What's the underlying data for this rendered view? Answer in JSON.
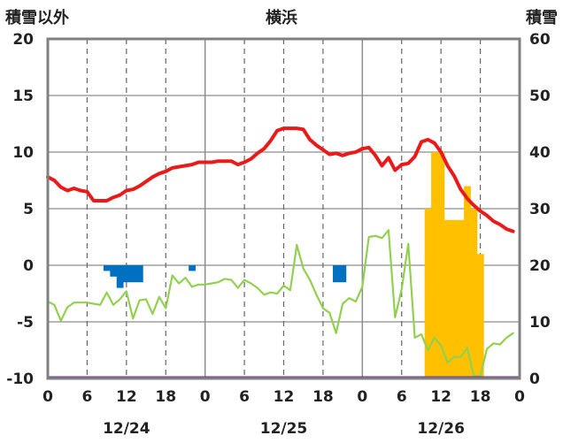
{
  "chart_data": {
    "type": "line+bar",
    "title": "横浜",
    "left_axis_label": "積雪以外",
    "right_axis_label": "積雪",
    "left_ylim": [
      -10,
      20
    ],
    "left_yticks": [
      "20",
      "15",
      "10",
      "5",
      "0",
      "-5",
      "-10"
    ],
    "right_ylim": [
      0,
      60
    ],
    "right_yticks": [
      "60",
      "50",
      "40",
      "30",
      "20",
      "10",
      "0"
    ],
    "xlim_hours": [
      0,
      72
    ],
    "x_tick_labels": [
      "0",
      "6",
      "12",
      "18",
      "0",
      "6",
      "12",
      "18",
      "0",
      "6",
      "12",
      "18",
      "0"
    ],
    "date_labels": [
      "12/24",
      "12/25",
      "12/26"
    ],
    "grid": true,
    "colors": {
      "temperature": "#e81a1a",
      "dewpoint": "#92d050",
      "precip": "#0070c0",
      "snow": "#ffc000",
      "baseline": "#7030a0",
      "frame": "#808080"
    },
    "series": [
      {
        "key": "temperature",
        "unit_axis": "left",
        "x": [
          0,
          1,
          2,
          3,
          4,
          5,
          6,
          7,
          8,
          9,
          10,
          11,
          12,
          13,
          14,
          15,
          16,
          17,
          18,
          19,
          20,
          21,
          22,
          23,
          24,
          25,
          26,
          27,
          28,
          29,
          30,
          31,
          32,
          33,
          34,
          35,
          36,
          37,
          38,
          39,
          40,
          41,
          42,
          43,
          44,
          45,
          46,
          47,
          48,
          49,
          50,
          51,
          52,
          53,
          54,
          55,
          56,
          57,
          58,
          59,
          60,
          61,
          62,
          63,
          64,
          65,
          66,
          67,
          68,
          69,
          70,
          71
        ],
        "y": [
          7.8,
          7.5,
          6.9,
          6.6,
          6.8,
          6.6,
          6.5,
          5.7,
          5.7,
          5.7,
          6.0,
          6.2,
          6.6,
          6.7,
          7.0,
          7.4,
          7.8,
          8.1,
          8.3,
          8.6,
          8.7,
          8.8,
          8.9,
          9.1,
          9.1,
          9.1,
          9.2,
          9.2,
          9.2,
          8.9,
          9.1,
          9.4,
          9.9,
          10.3,
          11.0,
          11.9,
          12.1,
          12.1,
          12.1,
          12.0,
          11.1,
          10.6,
          10.2,
          9.8,
          9.9,
          9.7,
          9.9,
          10.0,
          10.3,
          10.4,
          9.7,
          8.8,
          9.5,
          8.4,
          8.9,
          9.0,
          9.6,
          10.9,
          11.1,
          10.8,
          10.0,
          8.8,
          7.9,
          6.7,
          5.9,
          5.3,
          4.8,
          4.4,
          3.9,
          3.6,
          3.2,
          3.0
        ]
      },
      {
        "key": "dewpoint",
        "unit_axis": "left",
        "x": [
          0,
          1,
          2,
          3,
          4,
          5,
          6,
          7,
          8,
          9,
          10,
          11,
          12,
          13,
          14,
          15,
          16,
          17,
          18,
          19,
          20,
          21,
          22,
          23,
          24,
          25,
          26,
          27,
          28,
          29,
          30,
          31,
          32,
          33,
          34,
          35,
          36,
          37,
          38,
          39,
          40,
          41,
          42,
          43,
          44,
          45,
          46,
          47,
          48,
          49,
          50,
          51,
          52,
          53,
          54,
          55,
          56,
          57,
          58,
          59,
          60,
          61,
          62,
          63,
          64,
          65,
          66,
          67,
          68,
          69,
          70,
          71
        ],
        "y": [
          -3.2,
          -3.5,
          -4.9,
          -3.7,
          -3.3,
          -3.3,
          -3.3,
          -3.4,
          -3.5,
          -2.4,
          -3.5,
          -3.0,
          -2.3,
          -4.7,
          -3.1,
          -3.0,
          -4.3,
          -2.8,
          -3.8,
          -0.9,
          -1.6,
          -1.1,
          -1.9,
          -1.7,
          -1.7,
          -1.6,
          -1.5,
          -1.2,
          -1.3,
          -2.0,
          -1.3,
          -1.6,
          -2.0,
          -2.6,
          -2.4,
          -2.5,
          -1.8,
          -2.2,
          1.8,
          -0.3,
          -1.3,
          -2.6,
          -3.8,
          -4.2,
          -6.0,
          -3.4,
          -2.9,
          -3.2,
          -1.9,
          2.5,
          2.6,
          2.4,
          3.1,
          -4.6,
          -2.1,
          1.9,
          -6.4,
          -6.1,
          -7.5,
          -6.4,
          -7.1,
          -8.6,
          -8.1,
          -8.1,
          -7.3,
          -9.8,
          -9.8,
          -7.4,
          -6.9,
          -7.0,
          -6.4,
          -6.0
        ]
      }
    ],
    "bars": [
      {
        "key": "precip",
        "unit_axis": "left",
        "x": [
          9,
          10,
          11,
          12,
          13,
          14,
          22,
          44,
          45
        ],
        "y": [
          -0.5,
          -1.0,
          -2.0,
          -1.5,
          -1.5,
          -1.5,
          -0.5,
          -1.5,
          -1.5
        ]
      },
      {
        "key": "snow",
        "unit_axis": "right",
        "x": [
          58,
          59,
          60,
          61,
          62,
          63,
          64,
          65,
          66
        ],
        "y": [
          30,
          40,
          40,
          28,
          28,
          28,
          34,
          30,
          22
        ]
      }
    ]
  }
}
